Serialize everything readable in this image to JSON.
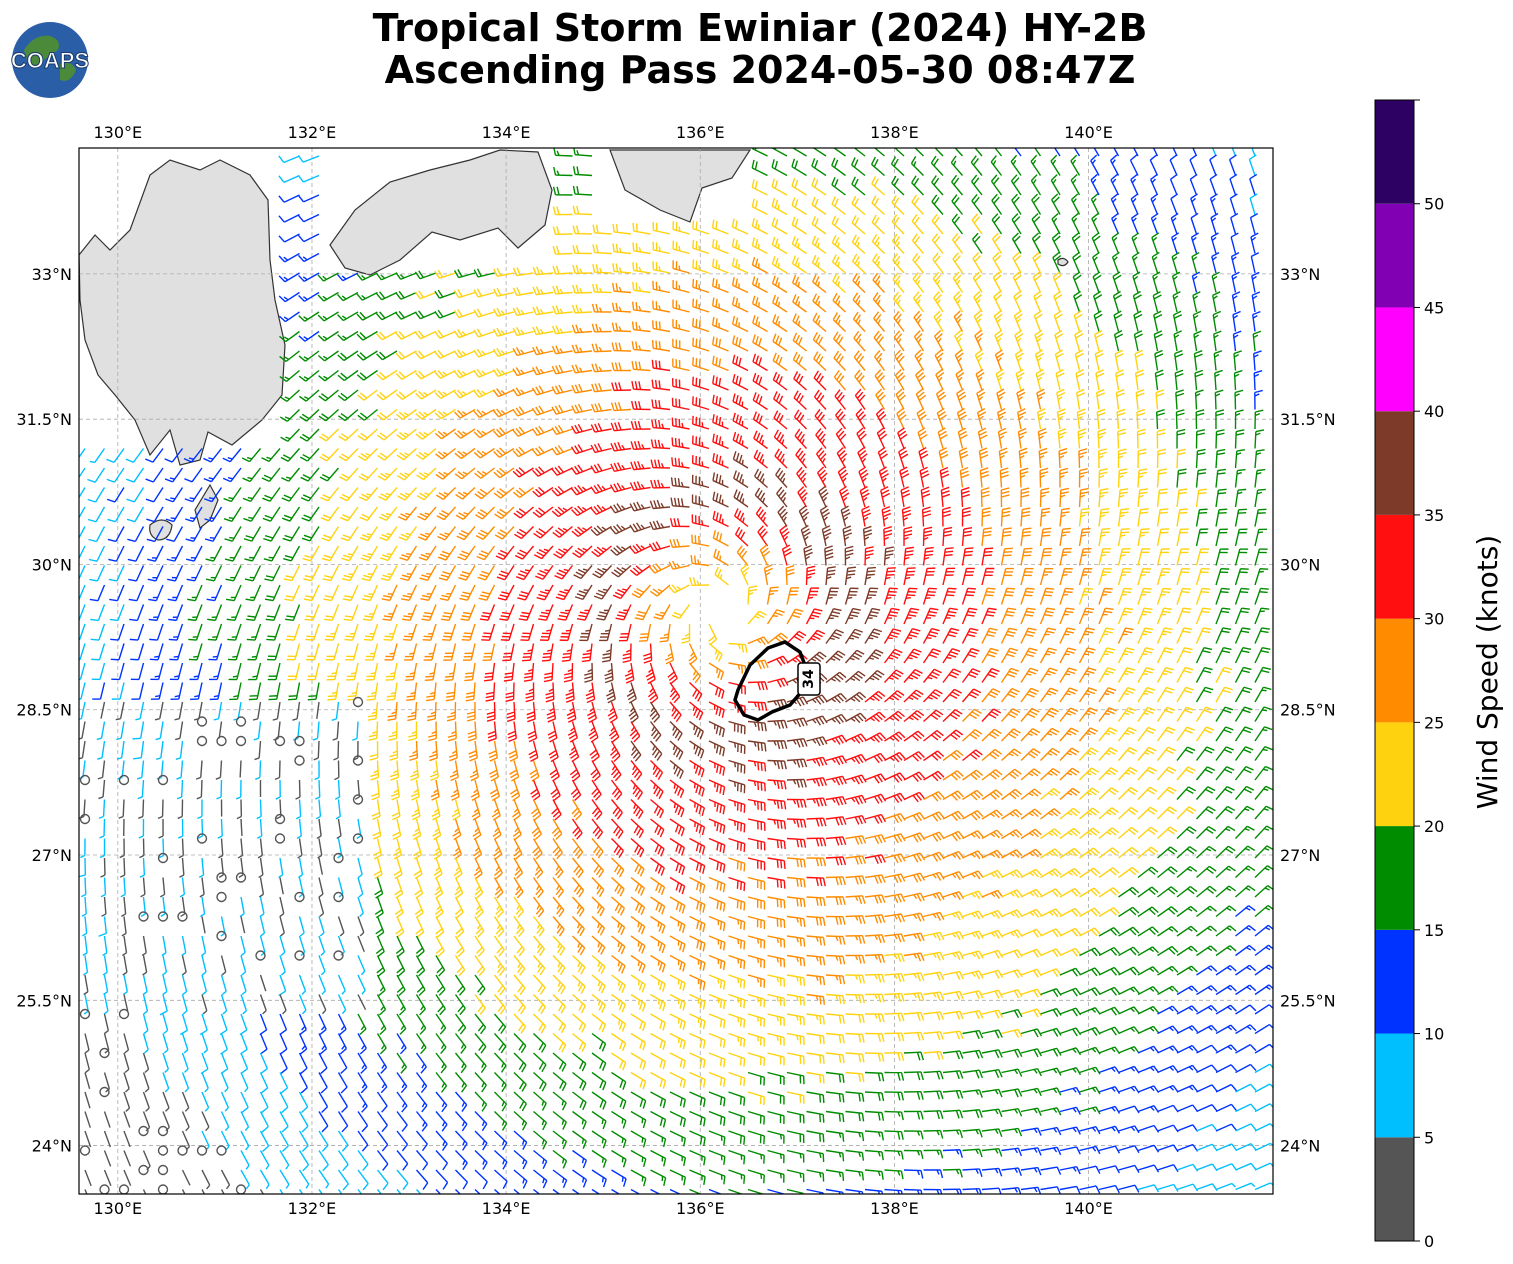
{
  "header": {
    "title_line1": "Tropical Storm Ewiniar (2024) HY-2B",
    "title_line2": "Ascending Pass 2024-05-30 08:47Z",
    "logo_text": "COAPS"
  },
  "map": {
    "lon_range": [
      129.6,
      141.9
    ],
    "lat_range": [
      23.5,
      34.3
    ],
    "lon_ticks": [
      "130°E",
      "132°E",
      "134°E",
      "136°E",
      "138°E",
      "140°E"
    ],
    "lon_tick_values": [
      130,
      132,
      134,
      136,
      138,
      140
    ],
    "lat_ticks": [
      "24°N",
      "25.5°N",
      "27°N",
      "28.5°N",
      "30°N",
      "31.5°N",
      "33°N"
    ],
    "lat_tick_values": [
      24,
      25.5,
      27,
      28.5,
      30,
      31.5,
      33
    ],
    "gridlines": true,
    "storm_center": {
      "lon": 136.2,
      "lat": 29.5
    },
    "contour_label": "34",
    "contour_kt": 34
  },
  "colorbar": {
    "label": "Wind Speed (knots)",
    "ticks": [
      "0",
      "5",
      "10",
      "15",
      "20",
      "25",
      "30",
      "35",
      "40",
      "45",
      "50"
    ],
    "bins": [
      {
        "min": 0,
        "max": 5,
        "color": "#555555"
      },
      {
        "min": 5,
        "max": 10,
        "color": "#00bfff"
      },
      {
        "min": 10,
        "max": 15,
        "color": "#0033ff"
      },
      {
        "min": 15,
        "max": 20,
        "color": "#008c00"
      },
      {
        "min": 20,
        "max": 25,
        "color": "#ffd20f"
      },
      {
        "min": 25,
        "max": 30,
        "color": "#ff8c00"
      },
      {
        "min": 30,
        "max": 35,
        "color": "#ff0f0f"
      },
      {
        "min": 35,
        "max": 40,
        "color": "#7d3a28"
      },
      {
        "min": 40,
        "max": 45,
        "color": "#ff00ff"
      },
      {
        "min": 45,
        "max": 50,
        "color": "#8200b4"
      },
      {
        "min": 50,
        "max": 55,
        "color": "#2d0064"
      }
    ]
  }
}
